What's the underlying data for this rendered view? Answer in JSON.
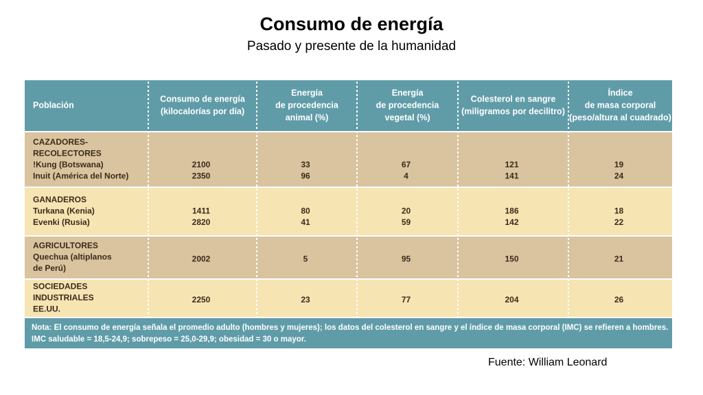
{
  "header": {
    "title": "Consumo de energía",
    "subtitle": "Pasado y presente de la humanidad"
  },
  "table": {
    "columns": [
      [
        "Población"
      ],
      [
        "Consumo de energía",
        "(kilocalorías por día)"
      ],
      [
        "Energía",
        "de procedencia",
        "animal (%)"
      ],
      [
        "Energía",
        "de procedencia",
        "vegetal (%)"
      ],
      [
        "Colesterol en sangre",
        "(miligramos por decilitro)"
      ],
      [
        "Índice",
        "de masa corporal",
        "(peso/altura al cuadrado)"
      ]
    ],
    "groups": [
      {
        "label_lines": [
          "CAZADORES-",
          "RECOLECTORES"
        ],
        "rows": [
          {
            "name_lines": [
              "!Kung (Botswana)"
            ],
            "values": [
              2100,
              33,
              67,
              121,
              19
            ]
          },
          {
            "name_lines": [
              "Inuit (América del Norte)"
            ],
            "values": [
              2350,
              96,
              4,
              141,
              24
            ]
          }
        ]
      },
      {
        "label_lines": [
          "GANADEROS"
        ],
        "rows": [
          {
            "name_lines": [
              "Turkana (Kenia)"
            ],
            "values": [
              1411,
              80,
              20,
              186,
              18
            ]
          },
          {
            "name_lines": [
              "Evenki (Rusia)"
            ],
            "values": [
              2820,
              41,
              59,
              142,
              22
            ]
          }
        ]
      },
      {
        "label_lines": [
          "AGRICULTORES"
        ],
        "rows": [
          {
            "name_lines": [
              "Quechua (altiplanos",
              "de Perú)"
            ],
            "values": [
              2002,
              5,
              95,
              150,
              21
            ]
          }
        ]
      },
      {
        "label_lines": [
          "SOCIEDADES",
          "INDUSTRIALES"
        ],
        "rows": [
          {
            "name_lines": [
              "EE.UU."
            ],
            "values": [
              2250,
              23,
              77,
              204,
              26
            ]
          }
        ]
      }
    ],
    "note_lines": [
      "Nota: El consumo de energía señala el promedio adulto (hombres y mujeres); los datos del colesterol en sangre y el índice de masa corporal (IMC) se refieren a hombres.",
      "IMC saludable = 18,5-24,9; sobrepeso = 25,0-29,9; obesidad = 30 o mayor."
    ]
  },
  "source": "Fuente: William Leonard"
}
